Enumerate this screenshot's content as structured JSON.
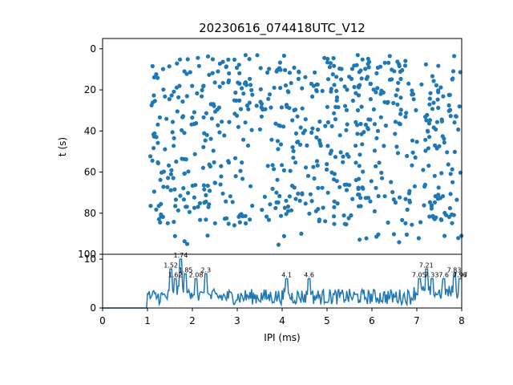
{
  "chart_data": [
    {
      "type": "scatter",
      "title": "20230616_074418UTC_V12",
      "xlabel": "",
      "ylabel": "t (s)",
      "xlim": [
        0,
        8
      ],
      "ylim": [
        100,
        -5
      ],
      "y_inverted": true,
      "yticks": [
        0,
        20,
        40,
        60,
        80,
        100
      ],
      "color": "#1f77b4",
      "marker": "circle",
      "grid": false,
      "points_note_x_range": [
        1.0,
        8.0
      ],
      "density_bands_t": [
        {
          "t_range": [
            3,
            20
          ],
          "density": "high"
        },
        {
          "t_range": [
            20,
            40
          ],
          "density": "high"
        },
        {
          "t_range": [
            40,
            66
          ],
          "density": "medium"
        },
        {
          "t_range": [
            66,
            86
          ],
          "density": "high"
        },
        {
          "t_range": [
            90,
            96
          ],
          "density": "low"
        }
      ]
    },
    {
      "type": "line",
      "title": "",
      "xlabel": "IPI (ms)",
      "ylabel": "",
      "xlim": [
        0,
        8
      ],
      "ylim": [
        0,
        11
      ],
      "xticks": [
        0,
        1,
        2,
        3,
        4,
        5,
        6,
        7,
        8
      ],
      "yticks": [
        0,
        10
      ],
      "color": "#1f77b4",
      "grid": false,
      "peaks": [
        {
          "x": 1.52,
          "y": 8,
          "label": "1.52"
        },
        {
          "x": 1.62,
          "y": 6,
          "label": "1.62"
        },
        {
          "x": 1.74,
          "y": 10,
          "label": "1.74"
        },
        {
          "x": 1.85,
          "y": 7,
          "label": "1.85"
        },
        {
          "x": 2.08,
          "y": 6,
          "label": "2.08"
        },
        {
          "x": 2.3,
          "y": 7,
          "label": "2.3"
        },
        {
          "x": 4.1,
          "y": 6,
          "label": "4.1"
        },
        {
          "x": 4.6,
          "y": 6,
          "label": "4.6"
        },
        {
          "x": 7.05,
          "y": 6,
          "label": "7.05"
        },
        {
          "x": 7.21,
          "y": 8,
          "label": "7.21"
        },
        {
          "x": 7.33,
          "y": 6,
          "label": "7.33"
        },
        {
          "x": 7.6,
          "y": 6,
          "label": "7.6"
        },
        {
          "x": 7.83,
          "y": 7,
          "label": "7.83"
        },
        {
          "x": 7.97,
          "y": 6,
          "label": "7.97"
        },
        {
          "x": 7.96,
          "y": 6,
          "label": "7.96"
        }
      ]
    }
  ]
}
